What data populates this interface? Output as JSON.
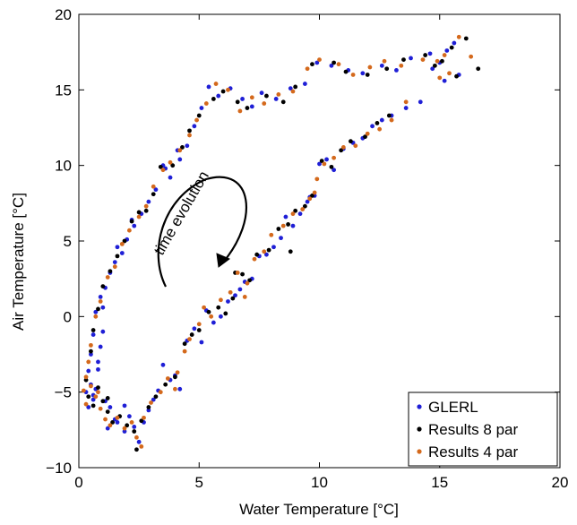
{
  "chart_data": {
    "type": "scatter",
    "title": "",
    "xlabel": "Water Temperature [°C]",
    "ylabel": "Air Temperature [°C]",
    "xlim": [
      0,
      20
    ],
    "ylim": [
      -10,
      20
    ],
    "xticks": [
      "0",
      "5",
      "10",
      "15",
      "20"
    ],
    "yticks": [
      "−10",
      "−5",
      "0",
      "5",
      "10",
      "15",
      "20"
    ],
    "grid": false,
    "legend_position": "bottom-right",
    "annotation": "time evolution",
    "series": [
      {
        "name": "GLERL",
        "color": "#1f1fd6",
        "points": [
          [
            0.3,
            -5.0
          ],
          [
            0.4,
            -6.0
          ],
          [
            0.5,
            -4.5
          ],
          [
            0.6,
            -5.5
          ],
          [
            0.7,
            -4.8
          ],
          [
            0.8,
            -3.0
          ],
          [
            0.9,
            -2.0
          ],
          [
            1.0,
            -1.0
          ],
          [
            0.8,
            -3.5
          ],
          [
            1.1,
            -5.6
          ],
          [
            1.3,
            -6.0
          ],
          [
            1.5,
            -6.8
          ],
          [
            1.2,
            -7.4
          ],
          [
            1.6,
            -7.0
          ],
          [
            1.9,
            -7.6
          ],
          [
            2.1,
            -6.6
          ],
          [
            2.3,
            -7.3
          ],
          [
            2.5,
            -8.3
          ],
          [
            2.7,
            -7.0
          ],
          [
            2.9,
            -6.2
          ],
          [
            3.1,
            -5.5
          ],
          [
            3.3,
            -4.9
          ],
          [
            3.5,
            -3.2
          ],
          [
            3.8,
            -4.2
          ],
          [
            4.2,
            -4.8
          ],
          [
            4.5,
            -1.6
          ],
          [
            4.8,
            -0.8
          ],
          [
            5.1,
            -1.7
          ],
          [
            5.3,
            0.4
          ],
          [
            5.6,
            -0.4
          ],
          [
            5.9,
            0.0
          ],
          [
            6.2,
            1.0
          ],
          [
            6.5,
            1.4
          ],
          [
            6.9,
            2.3
          ],
          [
            7.2,
            2.5
          ],
          [
            7.5,
            4.0
          ],
          [
            7.8,
            4.1
          ],
          [
            8.1,
            4.6
          ],
          [
            8.4,
            5.2
          ],
          [
            8.6,
            6.6
          ],
          [
            8.9,
            6.0
          ],
          [
            9.2,
            6.8
          ],
          [
            9.5,
            7.6
          ],
          [
            9.8,
            8.0
          ],
          [
            10.0,
            10.1
          ],
          [
            10.3,
            10.4
          ],
          [
            10.6,
            9.7
          ],
          [
            11.0,
            11.1
          ],
          [
            11.4,
            11.5
          ],
          [
            11.8,
            11.8
          ],
          [
            12.2,
            12.6
          ],
          [
            12.6,
            13.0
          ],
          [
            13.0,
            13.3
          ],
          [
            13.6,
            13.8
          ],
          [
            14.2,
            14.2
          ],
          [
            14.7,
            16.4
          ],
          [
            15.0,
            16.8
          ],
          [
            15.3,
            17.6
          ],
          [
            15.6,
            18.1
          ],
          [
            15.8,
            16.0
          ],
          [
            15.2,
            15.6
          ],
          [
            14.6,
            17.4
          ],
          [
            13.8,
            17.1
          ],
          [
            13.2,
            16.3
          ],
          [
            12.6,
            16.6
          ],
          [
            11.8,
            16.1
          ],
          [
            11.2,
            16.3
          ],
          [
            10.5,
            16.6
          ],
          [
            9.9,
            16.8
          ],
          [
            9.4,
            15.4
          ],
          [
            8.8,
            15.1
          ],
          [
            8.2,
            14.4
          ],
          [
            7.6,
            14.8
          ],
          [
            7.2,
            13.9
          ],
          [
            6.8,
            14.4
          ],
          [
            6.3,
            15.1
          ],
          [
            5.8,
            14.6
          ],
          [
            5.4,
            15.2
          ],
          [
            5.1,
            13.8
          ],
          [
            4.8,
            12.6
          ],
          [
            4.5,
            11.3
          ],
          [
            4.2,
            10.4
          ],
          [
            3.8,
            9.2
          ],
          [
            3.5,
            10.0
          ],
          [
            3.2,
            8.4
          ],
          [
            2.9,
            7.6
          ],
          [
            2.6,
            6.8
          ],
          [
            2.3,
            6.0
          ],
          [
            2.0,
            5.1
          ],
          [
            1.8,
            4.2
          ],
          [
            1.5,
            3.6
          ],
          [
            1.3,
            2.9
          ],
          [
            1.1,
            1.9
          ],
          [
            0.9,
            1.3
          ],
          [
            0.7,
            0.3
          ],
          [
            0.6,
            -1.2
          ],
          [
            0.5,
            -2.5
          ],
          [
            0.4,
            -3.6
          ],
          [
            1.0,
            0.6
          ],
          [
            1.6,
            4.6
          ],
          [
            2.2,
            6.4
          ],
          [
            3.6,
            9.8
          ],
          [
            4.1,
            11.0
          ],
          [
            9.6,
            7.9
          ],
          [
            6.7,
            1.8
          ],
          [
            4.0,
            -3.9
          ],
          [
            1.9,
            -5.9
          ],
          [
            0.6,
            -5.2
          ]
        ]
      },
      {
        "name": "Results 8 par",
        "color": "#000000",
        "points": [
          [
            0.4,
            -5.3
          ],
          [
            0.6,
            -5.9
          ],
          [
            0.8,
            -4.7
          ],
          [
            1.0,
            -5.6
          ],
          [
            1.2,
            -6.3
          ],
          [
            1.4,
            -7.0
          ],
          [
            1.7,
            -6.6
          ],
          [
            2.0,
            -7.2
          ],
          [
            2.3,
            -7.6
          ],
          [
            2.6,
            -6.9
          ],
          [
            2.9,
            -6.0
          ],
          [
            3.2,
            -5.3
          ],
          [
            3.6,
            -4.5
          ],
          [
            4.0,
            -4.0
          ],
          [
            4.4,
            -1.8
          ],
          [
            4.7,
            -1.2
          ],
          [
            5.0,
            -0.9
          ],
          [
            5.4,
            0.3
          ],
          [
            5.8,
            0.6
          ],
          [
            6.1,
            0.2
          ],
          [
            6.4,
            1.2
          ],
          [
            6.8,
            2.8
          ],
          [
            7.1,
            2.4
          ],
          [
            7.4,
            4.1
          ],
          [
            7.9,
            4.4
          ],
          [
            8.3,
            5.8
          ],
          [
            8.7,
            6.1
          ],
          [
            9.0,
            7.0
          ],
          [
            9.4,
            7.3
          ],
          [
            9.7,
            8.0
          ],
          [
            10.1,
            10.3
          ],
          [
            10.5,
            9.9
          ],
          [
            10.9,
            11.0
          ],
          [
            11.3,
            11.6
          ],
          [
            11.9,
            11.9
          ],
          [
            12.4,
            12.8
          ],
          [
            12.9,
            13.3
          ],
          [
            14.8,
            16.6
          ],
          [
            15.1,
            16.9
          ],
          [
            15.5,
            17.8
          ],
          [
            16.1,
            18.4
          ],
          [
            16.6,
            16.4
          ],
          [
            15.7,
            15.9
          ],
          [
            14.4,
            17.3
          ],
          [
            13.5,
            17.0
          ],
          [
            12.8,
            16.4
          ],
          [
            12.0,
            16.0
          ],
          [
            11.1,
            16.2
          ],
          [
            10.6,
            16.8
          ],
          [
            9.7,
            16.7
          ],
          [
            9.0,
            15.2
          ],
          [
            8.5,
            14.2
          ],
          [
            7.8,
            14.6
          ],
          [
            7.0,
            13.8
          ],
          [
            6.6,
            14.2
          ],
          [
            6.0,
            14.9
          ],
          [
            5.6,
            14.4
          ],
          [
            5.0,
            13.3
          ],
          [
            4.6,
            12.3
          ],
          [
            4.3,
            11.2
          ],
          [
            3.9,
            10.0
          ],
          [
            3.4,
            9.9
          ],
          [
            3.1,
            8.1
          ],
          [
            2.8,
            7.0
          ],
          [
            2.5,
            6.9
          ],
          [
            2.2,
            6.3
          ],
          [
            1.9,
            5.0
          ],
          [
            1.6,
            4.0
          ],
          [
            1.3,
            3.0
          ],
          [
            1.0,
            2.0
          ],
          [
            0.8,
            0.5
          ],
          [
            0.6,
            -0.9
          ],
          [
            0.5,
            -2.3
          ],
          [
            0.3,
            -4.2
          ],
          [
            2.4,
            -8.8
          ],
          [
            1.2,
            -5.4
          ],
          [
            6.5,
            2.9
          ],
          [
            8.8,
            4.3
          ]
        ]
      },
      {
        "name": "Results 4 par",
        "color": "#d4691c",
        "points": [
          [
            0.2,
            -4.9
          ],
          [
            0.3,
            -5.8
          ],
          [
            0.5,
            -4.6
          ],
          [
            0.7,
            -5.3
          ],
          [
            0.9,
            -6.1
          ],
          [
            1.1,
            -6.8
          ],
          [
            1.3,
            -7.2
          ],
          [
            1.6,
            -6.7
          ],
          [
            1.9,
            -7.4
          ],
          [
            2.2,
            -7.0
          ],
          [
            2.4,
            -8.0
          ],
          [
            2.7,
            -6.7
          ],
          [
            3.0,
            -5.7
          ],
          [
            3.4,
            -5.0
          ],
          [
            3.7,
            -4.1
          ],
          [
            4.1,
            -3.7
          ],
          [
            4.4,
            -2.3
          ],
          [
            4.6,
            -1.5
          ],
          [
            5.0,
            -0.5
          ],
          [
            5.2,
            0.6
          ],
          [
            5.5,
            0.0
          ],
          [
            5.9,
            1.1
          ],
          [
            6.3,
            1.6
          ],
          [
            6.6,
            2.9
          ],
          [
            7.0,
            2.2
          ],
          [
            7.3,
            3.8
          ],
          [
            7.7,
            4.3
          ],
          [
            8.0,
            5.4
          ],
          [
            8.5,
            6.0
          ],
          [
            8.9,
            6.8
          ],
          [
            9.3,
            7.1
          ],
          [
            9.6,
            7.8
          ],
          [
            9.9,
            9.1
          ],
          [
            10.2,
            10.1
          ],
          [
            10.6,
            10.5
          ],
          [
            11.0,
            11.2
          ],
          [
            11.5,
            11.3
          ],
          [
            12.0,
            12.1
          ],
          [
            12.5,
            12.4
          ],
          [
            13.0,
            13.0
          ],
          [
            14.9,
            16.9
          ],
          [
            15.2,
            17.3
          ],
          [
            15.4,
            16.1
          ],
          [
            15.8,
            18.5
          ],
          [
            16.3,
            17.2
          ],
          [
            15.0,
            15.8
          ],
          [
            14.3,
            17.0
          ],
          [
            13.4,
            16.6
          ],
          [
            12.7,
            16.9
          ],
          [
            12.1,
            16.5
          ],
          [
            11.4,
            16.0
          ],
          [
            10.8,
            16.7
          ],
          [
            10.0,
            17.0
          ],
          [
            9.5,
            16.4
          ],
          [
            8.9,
            14.9
          ],
          [
            8.3,
            14.7
          ],
          [
            7.7,
            14.1
          ],
          [
            7.2,
            14.5
          ],
          [
            6.7,
            13.6
          ],
          [
            6.2,
            15.0
          ],
          [
            5.7,
            15.4
          ],
          [
            5.3,
            14.1
          ],
          [
            4.9,
            13.0
          ],
          [
            4.6,
            12.0
          ],
          [
            4.2,
            11.0
          ],
          [
            3.8,
            10.2
          ],
          [
            3.5,
            9.7
          ],
          [
            3.1,
            8.6
          ],
          [
            2.8,
            7.3
          ],
          [
            2.5,
            6.6
          ],
          [
            2.1,
            5.7
          ],
          [
            1.8,
            4.8
          ],
          [
            1.5,
            3.3
          ],
          [
            1.2,
            2.6
          ],
          [
            0.9,
            1.0
          ],
          [
            0.7,
            0.0
          ],
          [
            0.5,
            -1.9
          ],
          [
            0.4,
            -3.0
          ],
          [
            0.3,
            -4.0
          ],
          [
            2.6,
            -8.6
          ],
          [
            0.8,
            -5.0
          ],
          [
            4.0,
            -4.8
          ],
          [
            6.9,
            1.3
          ],
          [
            9.8,
            8.2
          ],
          [
            13.6,
            14.2
          ]
        ]
      }
    ]
  }
}
